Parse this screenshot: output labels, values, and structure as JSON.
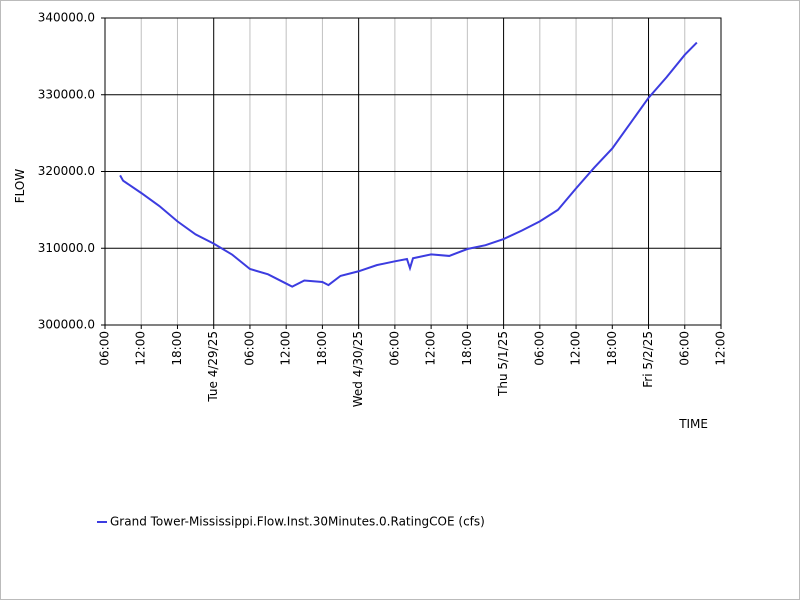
{
  "chart_data": {
    "type": "line",
    "y_label": "FLOW",
    "x_label": "TIME",
    "xlim": [
      "2025-04-28T06:00",
      "2025-05-02T12:00"
    ],
    "xticks": [
      {
        "value": "2025-04-28T06:00",
        "label": "06:00"
      },
      {
        "value": "2025-04-28T12:00",
        "label": "12:00"
      },
      {
        "value": "2025-04-28T18:00",
        "label": "18:00"
      },
      {
        "value": "2025-04-29T00:00",
        "label": "Tue 4/29/25"
      },
      {
        "value": "2025-04-29T06:00",
        "label": "06:00"
      },
      {
        "value": "2025-04-29T12:00",
        "label": "12:00"
      },
      {
        "value": "2025-04-29T18:00",
        "label": "18:00"
      },
      {
        "value": "2025-04-30T00:00",
        "label": "Wed 4/30/25"
      },
      {
        "value": "2025-04-30T06:00",
        "label": "06:00"
      },
      {
        "value": "2025-04-30T12:00",
        "label": "12:00"
      },
      {
        "value": "2025-04-30T18:00",
        "label": "18:00"
      },
      {
        "value": "2025-05-01T00:00",
        "label": "Thu 5/1/25"
      },
      {
        "value": "2025-05-01T06:00",
        "label": "06:00"
      },
      {
        "value": "2025-05-01T12:00",
        "label": "12:00"
      },
      {
        "value": "2025-05-01T18:00",
        "label": "18:00"
      },
      {
        "value": "2025-05-02T00:00",
        "label": "Fri 5/2/25"
      },
      {
        "value": "2025-05-02T06:00",
        "label": "06:00"
      },
      {
        "value": "2025-05-02T12:00",
        "label": "12:00"
      }
    ],
    "ylim": [
      300000,
      340000
    ],
    "yticks": [
      {
        "value": 300000,
        "label": "300000.0"
      },
      {
        "value": 310000,
        "label": "310000.0"
      },
      {
        "value": 320000,
        "label": "320000.0"
      },
      {
        "value": 330000,
        "label": "330000.0"
      },
      {
        "value": 340000,
        "label": "340000.0"
      }
    ],
    "grid": true,
    "legend": "bottom",
    "x": [
      "2025-04-28T08:30",
      "2025-04-28T09:00",
      "2025-04-28T12:00",
      "2025-04-28T15:00",
      "2025-04-28T18:00",
      "2025-04-28T21:00",
      "2025-04-29T00:00",
      "2025-04-29T03:00",
      "2025-04-29T06:00",
      "2025-04-29T09:00",
      "2025-04-29T12:00",
      "2025-04-29T13:00",
      "2025-04-29T15:00",
      "2025-04-29T18:00",
      "2025-04-29T19:00",
      "2025-04-29T21:00",
      "2025-04-30T00:00",
      "2025-04-30T03:00",
      "2025-04-30T06:00",
      "2025-04-30T08:00",
      "2025-04-30T08:30",
      "2025-04-30T09:00",
      "2025-04-30T12:00",
      "2025-04-30T15:00",
      "2025-04-30T18:00",
      "2025-04-30T21:00",
      "2025-05-01T00:00",
      "2025-05-01T03:00",
      "2025-05-01T06:00",
      "2025-05-01T09:00",
      "2025-05-01T12:00",
      "2025-05-01T15:00",
      "2025-05-01T18:00",
      "2025-05-01T21:00",
      "2025-05-02T00:00",
      "2025-05-02T03:00",
      "2025-05-02T06:00",
      "2025-05-02T08:00"
    ],
    "series": [
      {
        "name": "Grand Tower-Mississippi.Flow.Inst.30Minutes.0.RatingCOE (cfs)",
        "color": "#3c3ce0",
        "values": [
          319500,
          318800,
          317200,
          315500,
          313500,
          311800,
          310600,
          309200,
          307300,
          306600,
          305400,
          305000,
          305800,
          305600,
          305200,
          306400,
          307000,
          307800,
          308300,
          308600,
          307400,
          308700,
          309200,
          309000,
          309900,
          310400,
          311200,
          312300,
          313500,
          315000,
          317800,
          320500,
          323000,
          326300,
          329600,
          332300,
          335200,
          336800
        ]
      }
    ]
  }
}
